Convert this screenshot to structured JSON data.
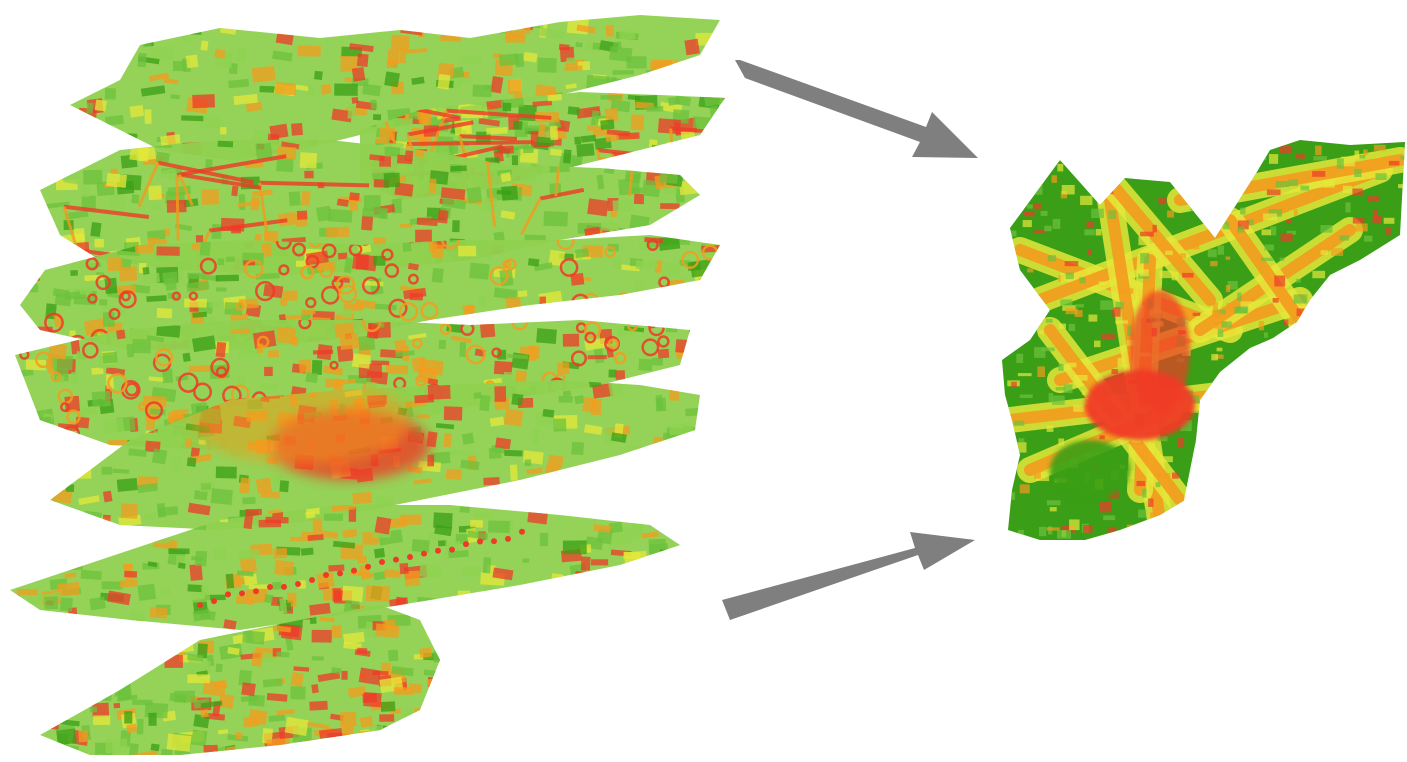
{
  "figure": {
    "description_free": true,
    "layers": [
      {
        "name": "census-tracts-top",
        "pattern": "polygons"
      },
      {
        "name": "road-network-buffers",
        "pattern": "grid-lines"
      },
      {
        "name": "block-groups",
        "pattern": "polygons"
      },
      {
        "name": "point-buffers",
        "pattern": "dots"
      },
      {
        "name": "density-surface",
        "pattern": "heat"
      },
      {
        "name": "transit-stops",
        "pattern": "dot-lines"
      },
      {
        "name": "census-tracts-bottom",
        "pattern": "polygons"
      }
    ],
    "palette": {
      "green_light": "#8fd14f",
      "green": "#6cc23c",
      "green_dark": "#3a9f16",
      "yellow": "#e5e83a",
      "orange": "#f39c1e",
      "red": "#f03a28",
      "arrow": "#7f7f7f"
    },
    "arrows": [
      {
        "name": "upper-arrow",
        "direction": "down-right"
      },
      {
        "name": "lower-arrow",
        "direction": "up-right"
      }
    ],
    "result_map": {
      "name": "composite-suitability-map"
    }
  }
}
